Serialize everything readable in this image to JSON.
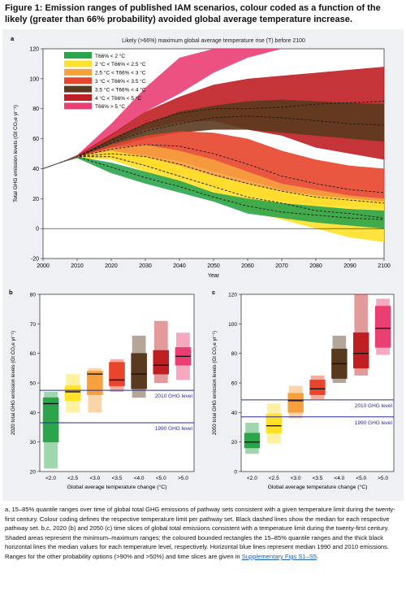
{
  "figure_title": "Figure 1: Emission ranges of published IAM scenarios, colour coded as a function of the likely (greater than 66% probability) avoided global average temperature increase.",
  "caption": {
    "part1": "a, 15–85% quantile ranges over time of global total GHG emissions of pathway sets consistent with a given temperature limit during the twenty-first century. Colour coding defines the respective temperature limit per pathway set. Black dashed lines show the median for each respective pathway set. b,c, 2020 (b) and 2050 (c) time slices of global total emissions consistent with a temperature limit during the twenty-first century. Shaded areas represent the minimum–maximum ranges; the coloured bounded rectangles the 15–85% quantile ranges and the thick black horizontal lines the median values for each temperature level, respectively. Horizontal blue lines represent median 1990 and 2010 emissions. Ranges for the other probability options (>90% and >50%) and time slices are given in ",
    "link": "Supplementary Figs S1–S5",
    "part2": "."
  },
  "colors": {
    "lt2": "#2ca44c",
    "2to2.5": "#ffe12a",
    "2.5to3": "#f7a13e",
    "3to3.5": "#e8452c",
    "3.5to4": "#5a3a1e",
    "4to5": "#bf1e22",
    "gt5": "#ea3f73",
    "ref_line": "#2a2a8a",
    "panel_bg": "#eef0f4"
  },
  "chart_data": [
    {
      "id": "a",
      "type": "area",
      "panel_label": "a",
      "title": "Likely (>66%) maximum global average temperature rise (T) before 2100",
      "xlabel": "Year",
      "ylabel": "Total GHG emission levels (Gt CO₂e yr⁻¹)",
      "xlim": [
        2000,
        2100
      ],
      "ylim": [
        -20,
        120
      ],
      "xticks": [
        2000,
        2010,
        2020,
        2030,
        2040,
        2050,
        2060,
        2070,
        2080,
        2090,
        2100
      ],
      "yticks": [
        -20,
        0,
        20,
        40,
        60,
        80,
        100,
        120
      ],
      "legend_placement": "top-left",
      "x": [
        2005,
        2010,
        2020,
        2030,
        2040,
        2050,
        2060,
        2070,
        2080,
        2090,
        2100
      ],
      "historical": {
        "x": [
          2000,
          2005,
          2010
        ],
        "y": [
          40,
          44,
          48
        ]
      },
      "series": [
        {
          "key": "gt5",
          "name": "T66% > 5 °C",
          "color": "#ea3f73",
          "low": [
            44,
            48,
            62,
            78,
            90,
            104,
            114,
            120,
            120,
            120,
            120
          ],
          "high": [
            44,
            49,
            70,
            94,
            114,
            120,
            120,
            120,
            120,
            120,
            120
          ]
        },
        {
          "key": "4to5",
          "name": "4 °C < T66% < 5 °C",
          "color": "#bf1e22",
          "low": [
            44,
            47,
            57,
            66,
            71,
            72,
            66,
            62,
            54,
            50,
            46
          ],
          "high": [
            44,
            49,
            63,
            78,
            88,
            96,
            100,
            102,
            104,
            106,
            108
          ],
          "median": [
            44,
            48,
            59,
            70,
            77,
            80,
            80,
            81,
            83,
            84,
            85
          ]
        },
        {
          "key": "3.5to4",
          "name": "3.5 °C < T66% < 4 °C",
          "color": "#5a3a1e",
          "low": [
            44,
            47,
            54,
            60,
            64,
            66,
            66,
            64,
            62,
            60,
            58
          ],
          "high": [
            44,
            48,
            60,
            70,
            78,
            82,
            85,
            86,
            85,
            84,
            83
          ],
          "median": [
            44,
            48,
            57,
            65,
            70,
            74,
            75,
            74,
            72,
            70,
            69
          ]
        },
        {
          "key": "3to3.5",
          "name": "3 °C < T66% < 3.5 °C",
          "color": "#e8452c",
          "low": [
            44,
            47,
            50,
            49,
            45,
            38,
            32,
            26,
            22,
            20,
            18
          ],
          "high": [
            44,
            48,
            56,
            62,
            65,
            64,
            60,
            52,
            46,
            42,
            40
          ],
          "median": [
            44,
            48,
            53,
            56,
            55,
            50,
            43,
            35,
            30,
            26,
            24
          ]
        },
        {
          "key": "2.5to3",
          "name": "2.5 °C < T66% < 3 °C",
          "color": "#f7a13e",
          "low": [
            44,
            47,
            47,
            42,
            34,
            28,
            22,
            18,
            16,
            15,
            14
          ],
          "high": [
            44,
            48,
            54,
            56,
            52,
            46,
            38,
            30,
            26,
            22,
            20
          ],
          "median": [
            44,
            48,
            50,
            48,
            43,
            36,
            30,
            25,
            21,
            19,
            17
          ]
        },
        {
          "key": "2to2.5",
          "name": "2 °C < T66% < 2.5 °C",
          "color": "#ffe12a",
          "low": [
            44,
            47,
            46,
            38,
            28,
            20,
            12,
            6,
            0,
            -6,
            -9
          ],
          "high": [
            44,
            48,
            52,
            48,
            42,
            35,
            30,
            25,
            22,
            20,
            18
          ],
          "median": [
            44,
            48,
            48,
            42,
            35,
            28,
            21,
            17,
            12,
            10,
            7
          ]
        },
        {
          "key": "lt2",
          "name": "T66% < 2 °C",
          "color": "#2ca44c",
          "low": [
            44,
            47,
            37,
            30,
            24,
            18,
            10,
            7,
            4,
            2,
            0
          ],
          "high": [
            44,
            48,
            44,
            38,
            32,
            24,
            20,
            17,
            15,
            13,
            12
          ],
          "median": [
            44,
            48,
            41,
            34,
            28,
            21,
            15,
            11,
            9,
            7,
            6
          ]
        }
      ]
    },
    {
      "id": "b",
      "type": "bar",
      "panel_label": "b",
      "xlabel": "Global average temperature change (°C)",
      "ylabel": "2020 total GHG emission levels (Gt CO₂e yr⁻¹)",
      "ylim": [
        20,
        80
      ],
      "yticks": [
        20,
        30,
        40,
        50,
        60,
        70,
        80
      ],
      "categories": [
        "<2.0",
        "<2.5",
        "<3.0",
        "<3.5",
        "<4.0",
        "<5.0",
        ">5.0"
      ],
      "colors": [
        "#2ca44c",
        "#ffe12a",
        "#f7a13e",
        "#e8452c",
        "#5a3a1e",
        "#bf1e22",
        "#ea3f73"
      ],
      "min": [
        21,
        40,
        40,
        47,
        45,
        50,
        51
      ],
      "q15": [
        30,
        44,
        46,
        49,
        48,
        53,
        56
      ],
      "median": [
        43,
        47,
        53,
        51,
        53,
        56,
        59
      ],
      "q85": [
        45,
        49,
        54,
        57,
        60,
        61,
        62
      ],
      "max": [
        47,
        53,
        55,
        58,
        66,
        71,
        67
      ],
      "ref_lines": [
        {
          "label": "2010 GHG level",
          "value": 47.5
        },
        {
          "label": "1990 GHG level",
          "value": 36.5
        }
      ]
    },
    {
      "id": "c",
      "type": "bar",
      "panel_label": "c",
      "xlabel": "Global average temperature change (°C)",
      "ylabel": "2050 total GHG emission levels (Gt CO₂e yr⁻¹)",
      "ylim": [
        0,
        120
      ],
      "yticks": [
        0,
        20,
        40,
        60,
        80,
        100,
        120
      ],
      "categories": [
        "<2.0",
        "<2.5",
        "<3.0",
        "<3.5",
        "<4.0",
        "<5.0",
        ">5.0"
      ],
      "colors": [
        "#2ca44c",
        "#ffe12a",
        "#f7a13e",
        "#e8452c",
        "#5a3a1e",
        "#bf1e22",
        "#ea3f73"
      ],
      "min": [
        12,
        19,
        36,
        49,
        60,
        65,
        79
      ],
      "q15": [
        16,
        26,
        40,
        52,
        63,
        70,
        84
      ],
      "median": [
        20,
        31,
        48,
        56,
        73,
        80,
        97
      ],
      "q85": [
        26,
        39,
        53,
        62,
        83,
        94,
        112
      ],
      "max": [
        33,
        46,
        58,
        65,
        92,
        120,
        117
      ],
      "ref_lines": [
        {
          "label": "2010 GHG level",
          "value": 48.5
        },
        {
          "label": "1990 GHG level",
          "value": 37
        }
      ]
    }
  ]
}
